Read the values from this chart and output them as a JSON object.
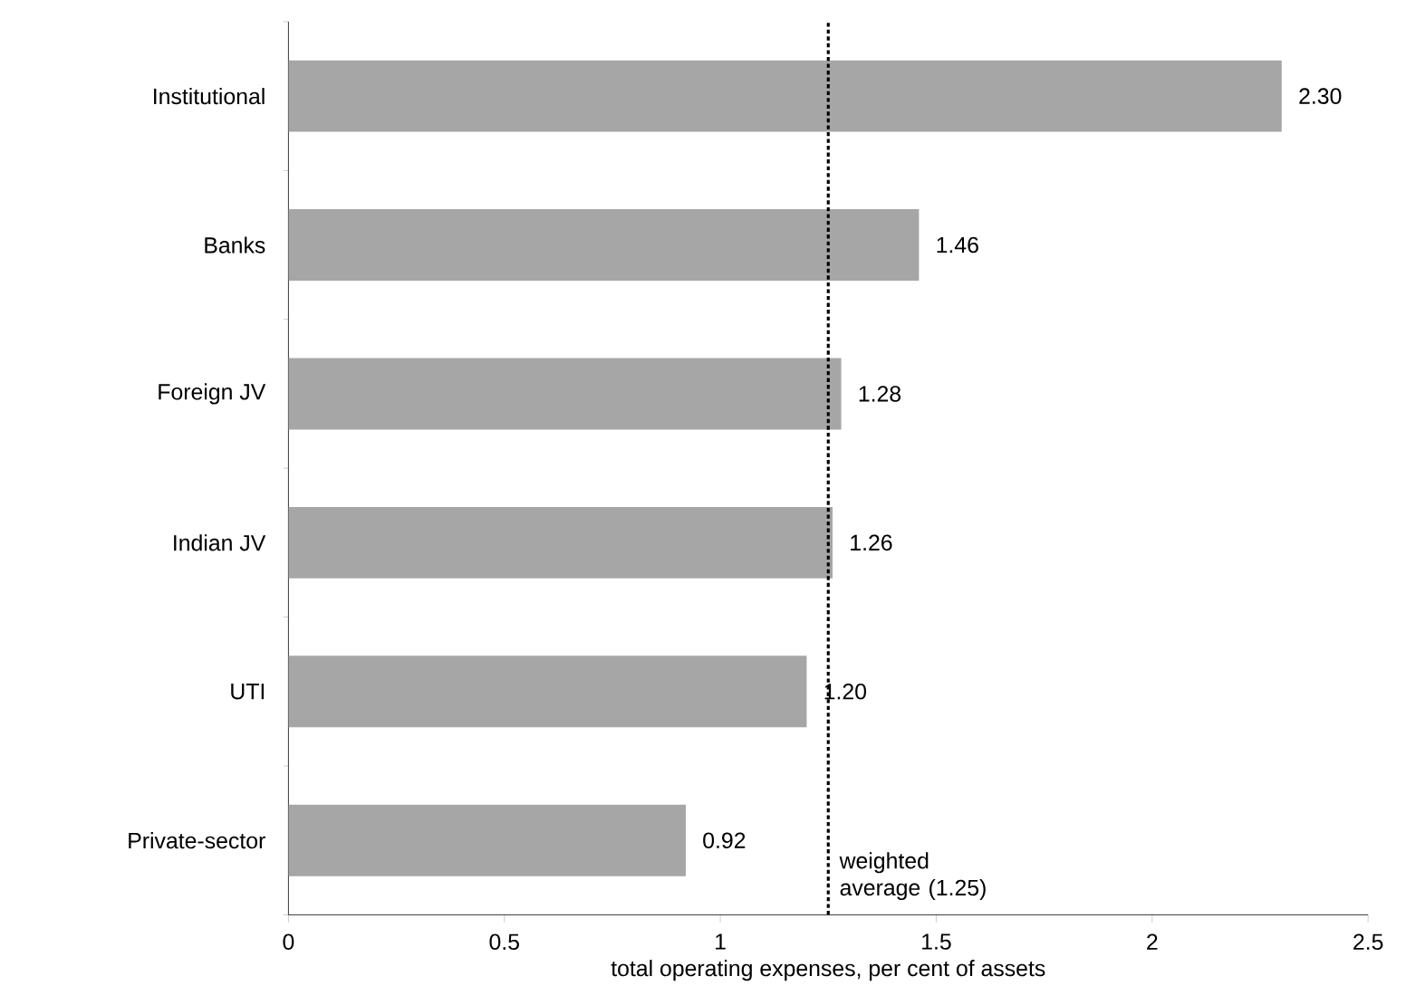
{
  "chart_data": {
    "type": "bar",
    "orientation": "horizontal",
    "xlabel": "total operating expenses, per cent of assets",
    "categories": [
      "Institutional",
      "Banks",
      "Foreign JV",
      "Indian JV",
      "UTI",
      "Private-sector"
    ],
    "values": [
      2.3,
      1.46,
      1.28,
      1.26,
      1.2,
      0.92
    ],
    "value_labels": [
      "2.30",
      "1.46",
      "1.28",
      "1.26",
      "1.20",
      "0.92"
    ],
    "color": "#a6a6a6",
    "xlim": [
      0,
      2.5
    ],
    "xticks": [
      0,
      0.5,
      1,
      1.5,
      2,
      2.5
    ],
    "ref_lines": [
      {
        "axis": "x",
        "value": 1.25,
        "label": "weighted average (1.25)",
        "color": "#000000",
        "line_style": "dotted"
      }
    ],
    "grid": false
  }
}
